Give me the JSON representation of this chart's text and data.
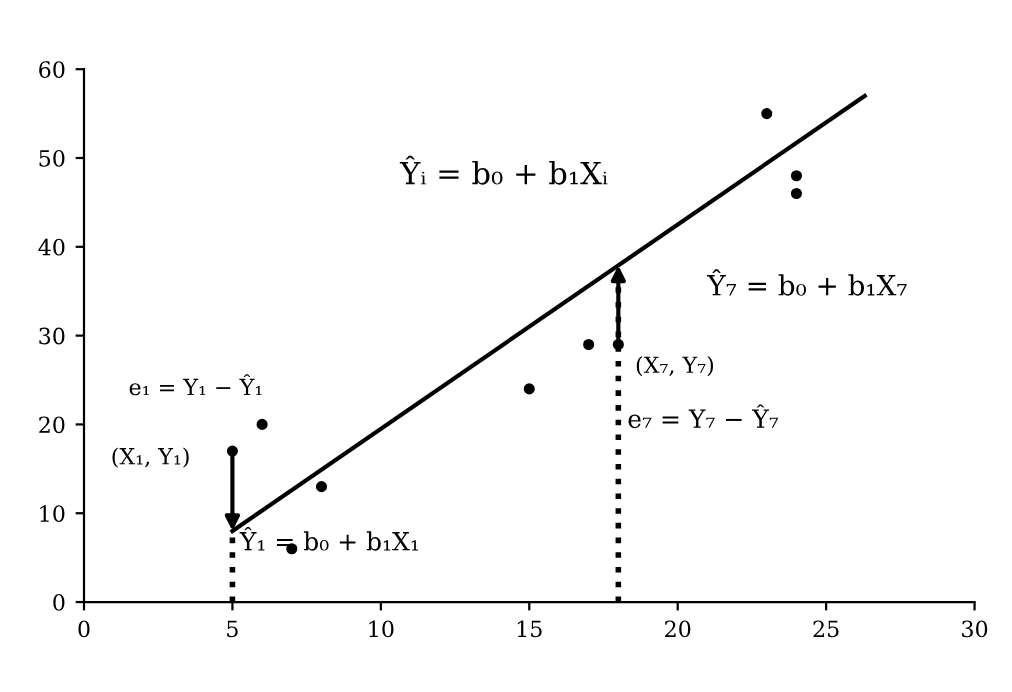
{
  "chart_data": {
    "type": "scatter",
    "xlim": [
      0,
      30
    ],
    "ylim": [
      0,
      60
    ],
    "xticks": [
      0,
      5,
      10,
      15,
      20,
      25,
      30
    ],
    "yticks": [
      0,
      10,
      20,
      30,
      40,
      50,
      60
    ],
    "grid": false,
    "series": [
      {
        "marker": "circle",
        "color": "#000000",
        "x": [
          5,
          6,
          7,
          8,
          15,
          17,
          18,
          23,
          24,
          24
        ],
        "values": [
          17,
          20,
          6,
          13,
          24,
          29,
          29,
          55,
          48,
          46
        ]
      },
      {
        "type": "line",
        "color": "#000000",
        "x": [
          5,
          26.3
        ],
        "values": [
          8,
          57
        ]
      }
    ],
    "ref_lines": [
      {
        "axis": "x",
        "value": 5,
        "color": "#000000",
        "line_style": "dotted"
      },
      {
        "axis": "x",
        "value": 18,
        "color": "#000000",
        "line_style": "dotted"
      }
    ],
    "annotations": [
      "Ŷᵢ = b₀ + b₁Xᵢ",
      "e₁ = Y₁ − Ŷ₁",
      "(X₁, Y₁)",
      "Ŷ₁ = b₀ + b₁X₁",
      "Ŷ₇ = b₀ + b₁X₇",
      {
        "text": "(X₇, Y₇)",
        "x": 18,
        "y": 29
      },
      "e₇ = Y₇ − Ŷ₇"
    ]
  }
}
